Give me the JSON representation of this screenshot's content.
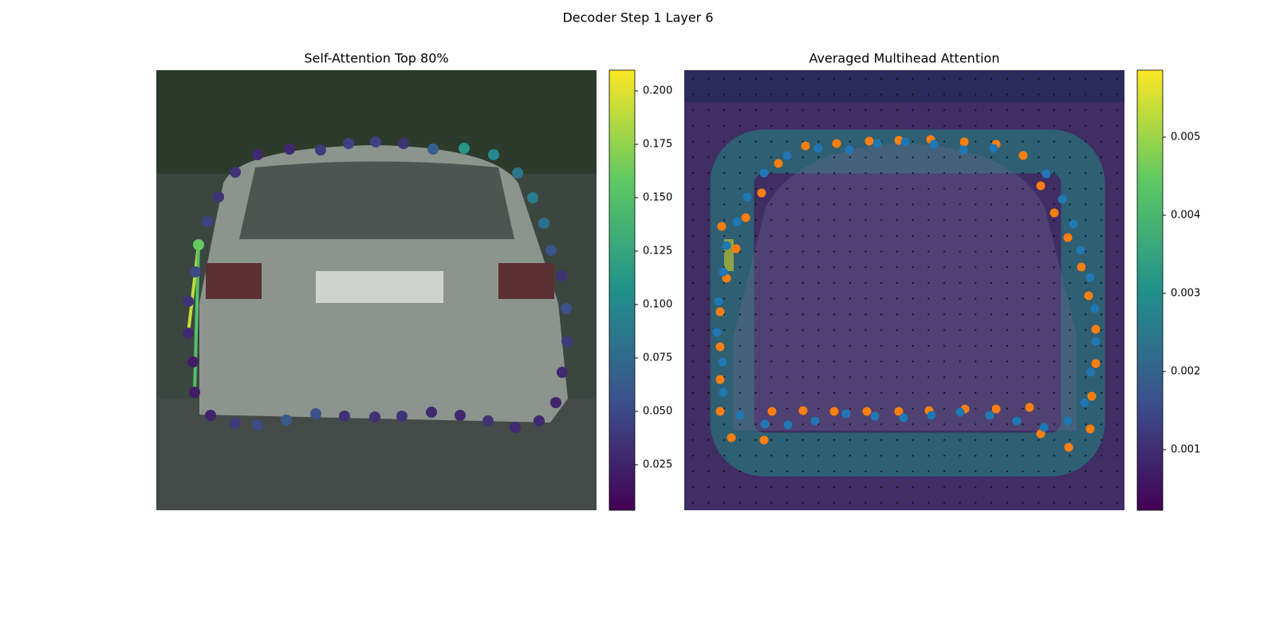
{
  "chart_data": [
    {
      "type": "scatter",
      "title": "Decoder Step 1 Layer 6",
      "subtitle": "Self-Attention Top 80%",
      "points": [
        [
          64,
          190
        ],
        [
          78,
          159
        ],
        [
          99,
          128
        ],
        [
          127,
          106
        ],
        [
          167,
          99
        ],
        [
          206,
          100
        ],
        [
          241,
          92
        ],
        [
          275,
          90
        ],
        [
          310,
          92
        ],
        [
          347,
          99
        ],
        [
          386,
          98
        ],
        [
          423,
          106
        ],
        [
          453,
          129
        ],
        [
          472,
          160
        ],
        [
          486,
          192
        ],
        [
          495,
          226
        ],
        [
          508,
          258
        ],
        [
          514,
          299
        ],
        [
          515,
          340
        ],
        [
          509,
          379
        ],
        [
          501,
          417
        ],
        [
          480,
          440
        ],
        [
          450,
          448
        ],
        [
          416,
          440
        ],
        [
          381,
          433
        ],
        [
          345,
          429
        ],
        [
          308,
          434
        ],
        [
          274,
          435
        ],
        [
          236,
          434
        ],
        [
          200,
          431
        ],
        [
          163,
          439
        ],
        [
          127,
          445
        ],
        [
          99,
          443
        ],
        [
          68,
          433
        ],
        [
          48,
          404
        ],
        [
          46,
          366
        ],
        [
          40,
          330
        ],
        [
          40,
          290
        ],
        [
          49,
          253
        ],
        [
          53,
          219
        ]
      ],
      "values": [
        0.045,
        0.035,
        0.035,
        0.03,
        0.03,
        0.04,
        0.045,
        0.045,
        0.035,
        0.065,
        0.11,
        0.1,
        0.085,
        0.09,
        0.08,
        0.055,
        0.035,
        0.055,
        0.04,
        0.03,
        0.025,
        0.03,
        0.03,
        0.035,
        0.03,
        0.03,
        0.035,
        0.035,
        0.035,
        0.055,
        0.06,
        0.05,
        0.04,
        0.025,
        0.02,
        0.02,
        0.03,
        0.035,
        0.05,
        0.16
      ],
      "colormap": "viridis",
      "clim": [
        0.0037,
        0.2097
      ],
      "cticks": [
        0.025,
        {
          "value": 0.05,
          "label": "0.050"
        },
        0.075,
        {
          "value": 0.1,
          "label": "0.100"
        },
        0.125,
        {
          "value": 0.15,
          "label": "0.150"
        },
        0.175,
        {
          "value": 0.2,
          "label": "0.200"
        }
      ]
    },
    {
      "type": "scatter",
      "subtitle": "Averaged Multihead Attention",
      "series": [
        {
          "color": "#ff7f0e",
          "points": [
            [
              47,
              196
            ],
            [
              65,
              224
            ],
            [
              53,
              261
            ],
            [
              45,
              303
            ],
            [
              45,
              347
            ],
            [
              45,
              388
            ],
            [
              45,
              428
            ],
            [
              59,
              461
            ],
            [
              100,
              464
            ],
            [
              110,
              428
            ],
            [
              149,
              427
            ],
            [
              188,
              428
            ],
            [
              229,
              428
            ],
            [
              269,
              428
            ],
            [
              307,
              427
            ],
            [
              352,
              425
            ],
            [
              391,
              425
            ],
            [
              433,
              423
            ],
            [
              447,
              456
            ],
            [
              482,
              473
            ],
            [
              509,
              450
            ],
            [
              511,
              409
            ],
            [
              516,
              368
            ],
            [
              516,
              325
            ],
            [
              507,
              283
            ],
            [
              498,
              247
            ],
            [
              481,
              210
            ],
            [
              464,
              179
            ],
            [
              447,
              145
            ],
            [
              425,
              107
            ],
            [
              391,
              93
            ],
            [
              351,
              90
            ],
            [
              309,
              87
            ],
            [
              269,
              88
            ],
            [
              232,
              89
            ],
            [
              191,
              92
            ],
            [
              152,
              95
            ],
            [
              118,
              117
            ],
            [
              97,
              154
            ],
            [
              77,
              185
            ]
          ]
        },
        {
          "color": "#1f77b4",
          "points": [
            [
              53,
              220
            ],
            [
              49,
              253
            ],
            [
              43,
              290
            ],
            [
              41,
              329
            ],
            [
              48,
              366
            ],
            [
              49,
              404
            ],
            [
              70,
              433
            ],
            [
              101,
              444
            ],
            [
              130,
              445
            ],
            [
              164,
              440
            ],
            [
              203,
              431
            ],
            [
              239,
              434
            ],
            [
              275,
              436
            ],
            [
              310,
              433
            ],
            [
              346,
              429
            ],
            [
              383,
              433
            ],
            [
              417,
              440
            ],
            [
              451,
              448
            ],
            [
              481,
              440
            ],
            [
              502,
              417
            ],
            [
              510,
              379
            ],
            [
              516,
              340
            ],
            [
              515,
              299
            ],
            [
              509,
              260
            ],
            [
              497,
              226
            ],
            [
              488,
              193
            ],
            [
              474,
              162
            ],
            [
              454,
              130
            ],
            [
              388,
              98
            ],
            [
              350,
              100
            ],
            [
              313,
              93
            ],
            [
              277,
              90
            ],
            [
              242,
              92
            ],
            [
              207,
              100
            ],
            [
              168,
              98
            ],
            [
              129,
              107
            ],
            [
              100,
              129
            ],
            [
              79,
              159
            ],
            [
              66,
              190
            ]
          ]
        }
      ],
      "colormap": "viridis",
      "clim": [
        0.000224,
        0.005857
      ],
      "cticks": [
        0.001,
        0.002,
        0.003,
        0.004,
        0.005
      ]
    }
  ]
}
